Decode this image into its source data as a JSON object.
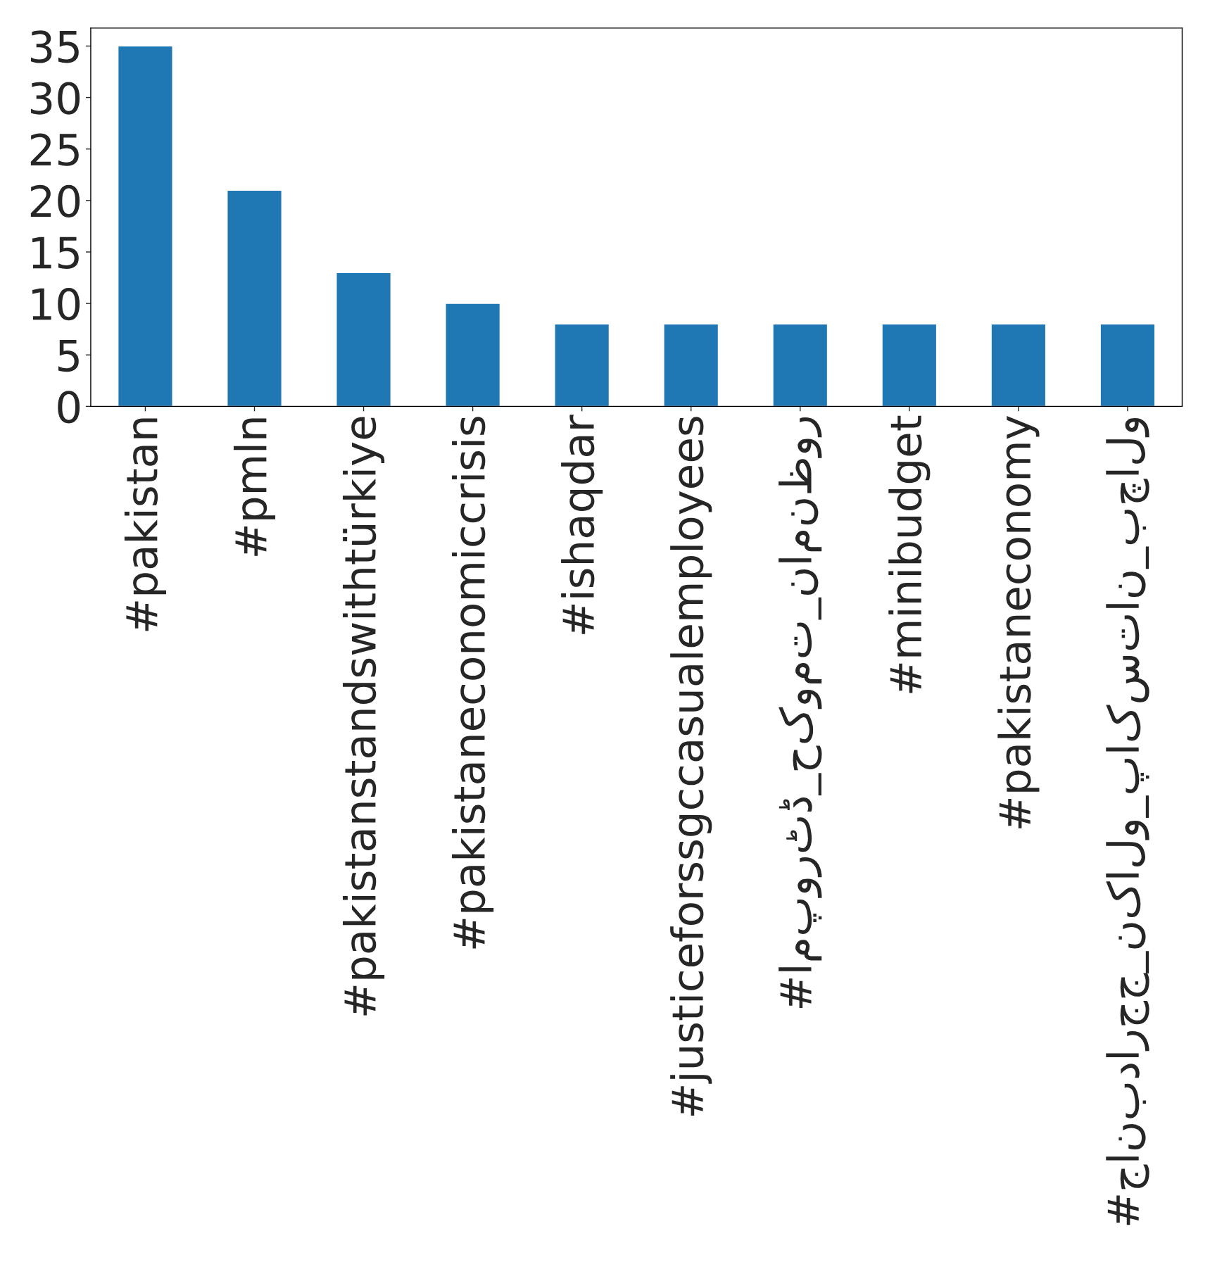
{
  "chart_data": {
    "type": "bar",
    "categories": [
      "#pakistan",
      "#pmln",
      "#pakistanstandswithtürkiye",
      "#pakistaneconomiccrisis",
      "#ishaqdar",
      "#justiceforssgccasualemployees",
      "#امپورٹڈ_حکومت_نامنظور",
      "#minibudget",
      "#pakistaneconomy",
      "#جانبدارجج_نکالو_پاکستان_بچالو"
    ],
    "values": [
      35,
      21,
      13,
      10,
      8,
      8,
      8,
      8,
      8,
      8
    ],
    "color": "#1f77b4",
    "ylim": [
      0,
      36.75
    ],
    "yticks": [
      0,
      5,
      10,
      15,
      20,
      25,
      30,
      35
    ],
    "grid": false
  }
}
